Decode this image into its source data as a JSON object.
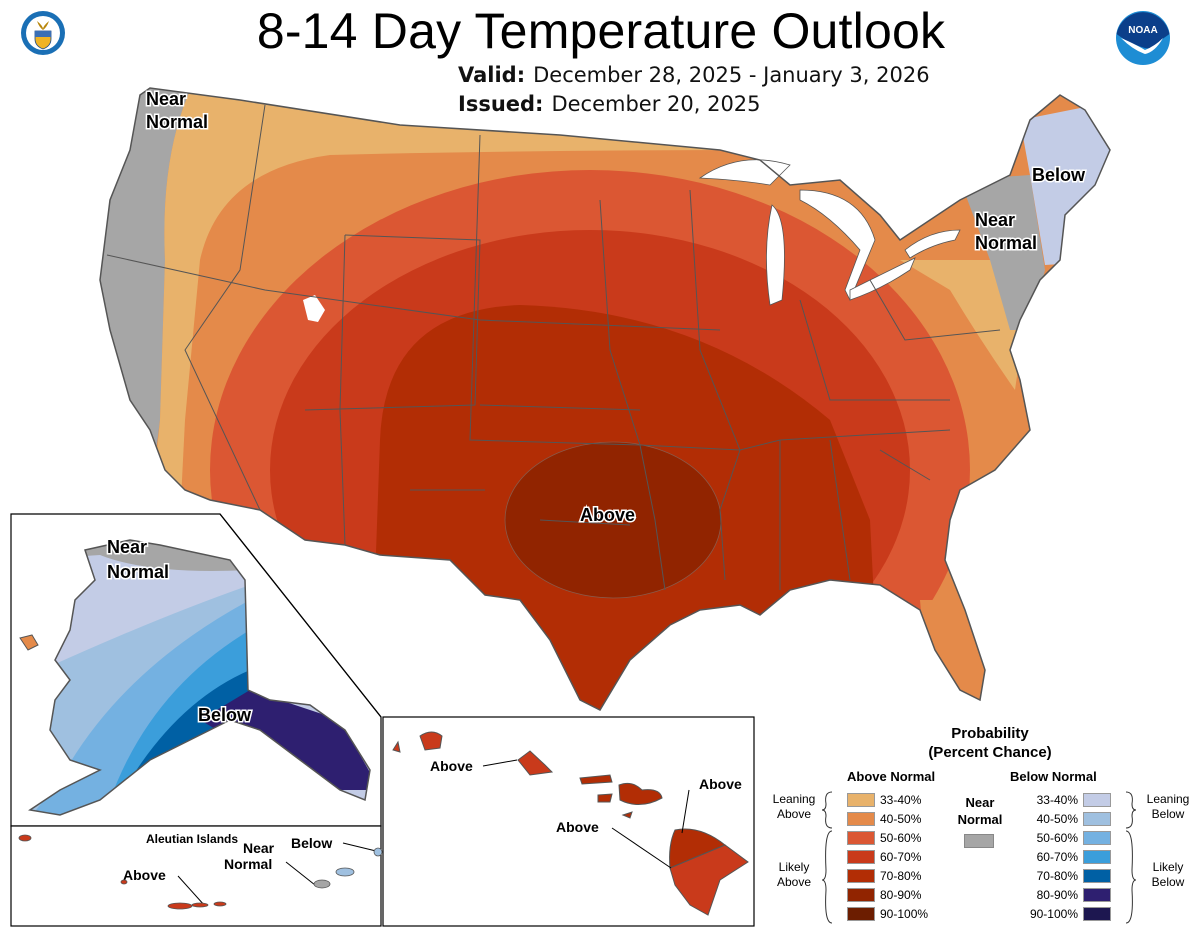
{
  "header": {
    "title": "8-14 Day Temperature Outlook",
    "valid_label": "Valid:",
    "valid_value": "December 28, 2025 - January 3, 2026",
    "issued_label": "Issued:",
    "issued_value": "December 20, 2025"
  },
  "logos": {
    "left": "department-of-commerce-seal",
    "right": "noaa-logo",
    "noaa_text": "NOAA"
  },
  "map_labels": {
    "conus_northwest": [
      "Near",
      "Normal"
    ],
    "conus_northeast_near": [
      "Near",
      "Normal"
    ],
    "conus_northeast_below": "Below",
    "conus_center": "Above",
    "alaska_north": [
      "Near",
      "Normal"
    ],
    "alaska_south": "Below",
    "aleutian_title": "Aleutian Islands",
    "aleutian_above": "Above",
    "aleutian_near": [
      "Near",
      "Normal"
    ],
    "aleutian_below": "Below",
    "hawaii_oahu": "Above",
    "hawaii_big_island_north": "Above",
    "hawaii_big_island_south": "Above"
  },
  "legend": {
    "title_line1": "Probability",
    "title_line2": "(Percent Chance)",
    "above_header": "Above Normal",
    "below_header": "Below Normal",
    "near_header": [
      "Near",
      "Normal"
    ],
    "near_color": "#a6a6a6",
    "leaning_above": [
      "Leaning",
      "Above"
    ],
    "likely_above": [
      "Likely",
      "Above"
    ],
    "leaning_below": [
      "Leaning",
      "Below"
    ],
    "likely_below": [
      "Likely",
      "Below"
    ],
    "above": [
      {
        "range": "33-40%",
        "color": "#e8b26b"
      },
      {
        "range": "40-50%",
        "color": "#e48a4a"
      },
      {
        "range": "50-60%",
        "color": "#db5733"
      },
      {
        "range": "60-70%",
        "color": "#c93a1b"
      },
      {
        "range": "70-80%",
        "color": "#b22d05"
      },
      {
        "range": "80-90%",
        "color": "#912400"
      },
      {
        "range": "90-100%",
        "color": "#6c1d00"
      }
    ],
    "below": [
      {
        "range": "33-40%",
        "color": "#c3cce6"
      },
      {
        "range": "40-50%",
        "color": "#9fc0e0"
      },
      {
        "range": "50-60%",
        "color": "#74b1e1"
      },
      {
        "range": "60-70%",
        "color": "#3b9edb"
      },
      {
        "range": "70-80%",
        "color": "#0060a4"
      },
      {
        "range": "80-90%",
        "color": "#2e1f70"
      },
      {
        "range": "90-100%",
        "color": "#1d1750"
      }
    ]
  },
  "chart_data": {
    "type": "heatmap",
    "title": "8-14 Day Temperature Outlook",
    "subtitle": "Valid: December 28, 2025 - January 3, 2026; Issued: December 20, 2025",
    "categories_above": [
      "33-40%",
      "40-50%",
      "50-60%",
      "60-70%",
      "70-80%",
      "80-90%",
      "90-100%"
    ],
    "categories_below": [
      "33-40%",
      "40-50%",
      "50-60%",
      "60-70%",
      "70-80%",
      "80-90%",
      "90-100%"
    ],
    "regions": [
      {
        "region": "Pacific Northwest coast / West Coast",
        "category": "Near Normal"
      },
      {
        "region": "Interior West / Northern Plains fringe",
        "category": "Above",
        "probability": "33-40%"
      },
      {
        "region": "Great Basin / Upper Midwest",
        "category": "Above",
        "probability": "40-50%"
      },
      {
        "region": "Rockies / Midwest",
        "category": "Above",
        "probability": "50-60%"
      },
      {
        "region": "Central Rockies / Central Plains",
        "category": "Above",
        "probability": "60-70%"
      },
      {
        "region": "Southern Plains / Texas",
        "category": "Above",
        "probability": "70-80%"
      },
      {
        "region": "Oklahoma / Southern Kansas / Arkansas center",
        "category": "Above",
        "probability": "80-90%"
      },
      {
        "region": "Southeast",
        "category": "Above",
        "probability": "50-70%"
      },
      {
        "region": "Florida peninsula / Mid-Atlantic coast",
        "category": "Above",
        "probability": "40-50%"
      },
      {
        "region": "New York / New Jersey",
        "category": "Near Normal"
      },
      {
        "region": "New England",
        "category": "Below",
        "probability": "33-40%"
      },
      {
        "region": "Alaska North Slope",
        "category": "Near Normal"
      },
      {
        "region": "Alaska west to southeast",
        "category": "Below",
        "probability": "33-90%"
      },
      {
        "region": "Western Aleutians",
        "category": "Above"
      },
      {
        "region": "Central Aleutians",
        "category": "Near Normal"
      },
      {
        "region": "Eastern Aleutians",
        "category": "Below"
      },
      {
        "region": "Hawaii",
        "category": "Above",
        "probability": "60-80%"
      }
    ]
  }
}
